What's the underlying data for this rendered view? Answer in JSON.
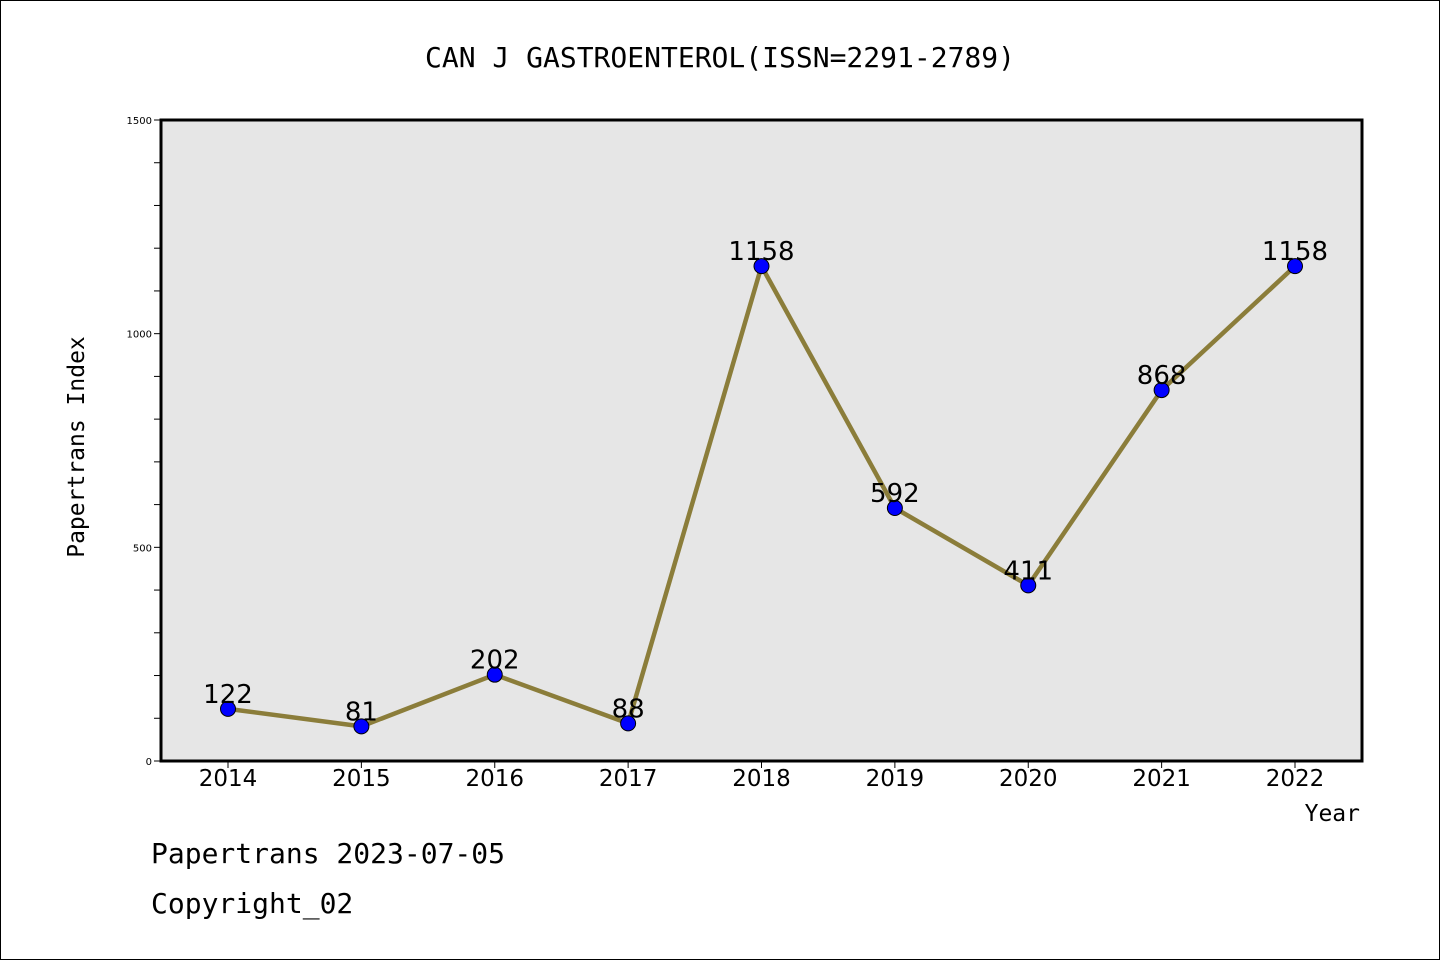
{
  "footer": {
    "line1": "Papertrans 2023-07-05",
    "line2": "Copyright_02"
  },
  "colors": {
    "plot_background": "#e6e6e6",
    "line": "#8b7d3a",
    "marker": "#0000ff",
    "axis": "#000000"
  },
  "chart_data": {
    "type": "line",
    "title": "CAN J GASTROENTEROL(ISSN=2291-2789)",
    "xlabel": "Year",
    "ylabel": "Papertrans Index",
    "categories": [
      "2014",
      "2015",
      "2016",
      "2017",
      "2018",
      "2019",
      "2020",
      "2021",
      "2022"
    ],
    "series": [
      {
        "values": [
          122,
          81,
          202,
          88,
          1158,
          592,
          411,
          868,
          1158
        ]
      }
    ],
    "data_labels": [
      "122",
      "81",
      "202",
      "88",
      "1158",
      "592",
      "411",
      "868",
      "1158"
    ],
    "ylim": [
      0,
      1500
    ],
    "yticks": [
      0,
      500,
      1000,
      1500
    ],
    "grid": false,
    "legend": "none"
  }
}
